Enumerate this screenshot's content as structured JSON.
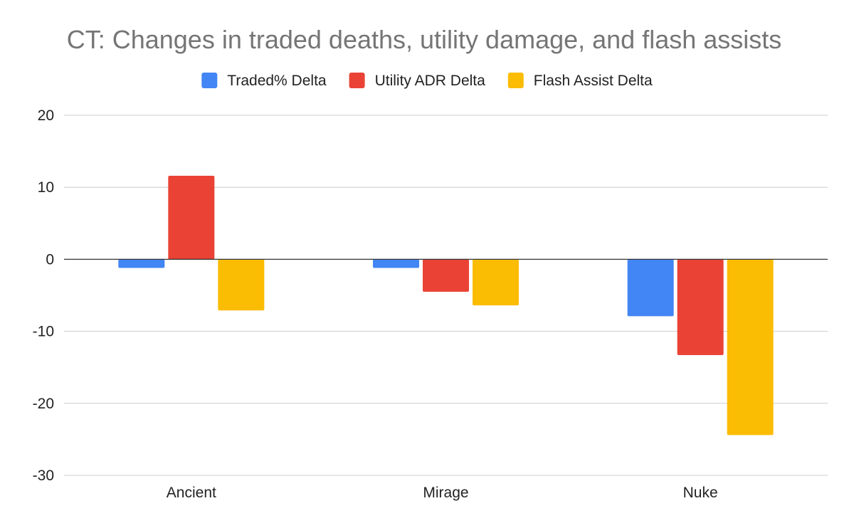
{
  "chart_data": {
    "type": "bar",
    "title": "CT: Changes in traded deaths, utility damage, and flash assists",
    "xlabel": "",
    "ylabel": "",
    "categories": [
      "Ancient",
      "Mirage",
      "Nuke"
    ],
    "series": [
      {
        "name": "Traded% Delta",
        "color": "#4285f4",
        "values": [
          -1.2,
          -1.2,
          -7.9
        ]
      },
      {
        "name": "Utility ADR Delta",
        "color": "#ea4335",
        "values": [
          11.6,
          -4.5,
          -13.3
        ]
      },
      {
        "name": "Flash Assist Delta",
        "color": "#fbbc04",
        "values": [
          -7.1,
          -6.4,
          -24.4
        ]
      }
    ],
    "ylim": [
      -30,
      20
    ],
    "yticks": [
      20,
      10,
      0,
      -10,
      -20,
      -30
    ],
    "grid": true,
    "legend_position": "top"
  }
}
